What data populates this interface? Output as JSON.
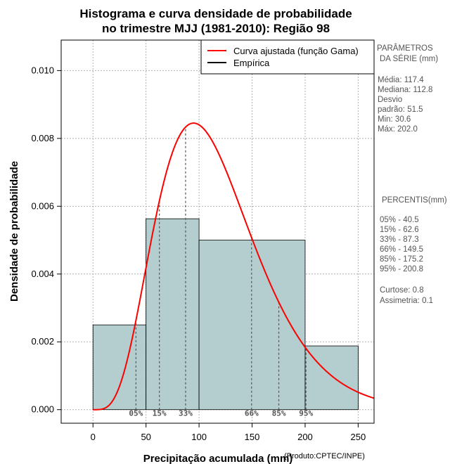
{
  "chart_data": {
    "type": "bar",
    "title_line1": "Histograma e curva densidade de probabilidade",
    "title_line2": "no trimestre MJJ (1981-2010): Região 98",
    "xlabel": "Precipitação acumulada (mm)",
    "ylabel": "Densidade de probabilidade",
    "credit": "(Produto:CPTEC/INPE)",
    "xlim": [
      -30,
      265
    ],
    "ylim": [
      -0.0004,
      0.0109
    ],
    "x_ticks": [
      0,
      50,
      100,
      150,
      200,
      250
    ],
    "x_tick_labels": [
      "0",
      "50",
      "100",
      "150",
      "200",
      "250"
    ],
    "y_ticks": [
      0.0,
      0.002,
      0.004,
      0.006,
      0.008,
      0.01
    ],
    "y_tick_labels": [
      "0.000",
      "0.002",
      "0.004",
      "0.006",
      "0.008",
      "0.010"
    ],
    "grid": true,
    "bar_color": "#b4cecf",
    "curve_color": "#ff0000",
    "histogram": [
      {
        "x0": 0,
        "x1": 50,
        "density": 0.0025
      },
      {
        "x0": 50,
        "x1": 100,
        "density": 0.00563
      },
      {
        "x0": 100,
        "x1": 200,
        "density": 0.005
      },
      {
        "x0": 200,
        "x1": 250,
        "density": 0.00188
      }
    ],
    "gamma_curve": {
      "mean": 117.4,
      "sd": 51.5,
      "x_start": 0,
      "x_end": 265
    },
    "percentile_markers": [
      {
        "label": "05%",
        "x": 40.5
      },
      {
        "label": "15%",
        "x": 62.6
      },
      {
        "label": "33%",
        "x": 87.3
      },
      {
        "label": "66%",
        "x": 149.5
      },
      {
        "label": "85%",
        "x": 175.2
      },
      {
        "label": "95%",
        "x": 200.8
      }
    ],
    "legend": {
      "position": "top-right",
      "entries": [
        {
          "label": "Curva ajustada (função Gama)",
          "color": "#ff0000"
        },
        {
          "label": "Empírica",
          "color": "#000000"
        }
      ]
    }
  },
  "side_panel": {
    "params_title_1": "PARÂMETROS",
    "params_title_2": "DA SÉRIE (mm)",
    "params": [
      "Média:  117.4",
      "Mediana:  112.8",
      "Desvio",
      "padrão:  51.5",
      "Min:  30.6",
      "Máx:  202.0"
    ],
    "percentis_title": "PERCENTIS(mm)",
    "percentis": [
      "05% -  40.5",
      "15% -  62.6",
      "33% -  87.3",
      "66% -  149.5",
      "85% -  175.2",
      "95% -  200.8"
    ],
    "curtose": "Curtose:  0.8",
    "assimetria": "Assimetria:  0.1"
  }
}
